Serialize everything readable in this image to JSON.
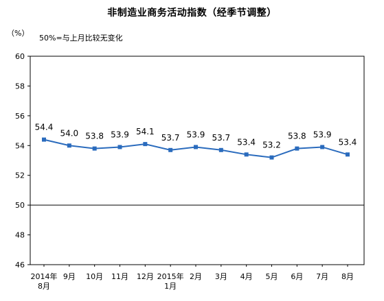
{
  "title": "非制造业商务活动指数（经季节调整）",
  "y_unit": "（%）",
  "note": "50%=与上月比较无变化",
  "colors": {
    "line": "#2a6bbd",
    "axis": "#000000"
  },
  "chart_data": {
    "type": "line",
    "title": "非制造业商务活动指数（经季节调整）",
    "xlabel": "",
    "ylabel": "（%）",
    "categories": [
      [
        "2014年",
        "8月"
      ],
      [
        "9月"
      ],
      [
        "10月"
      ],
      [
        "11月"
      ],
      [
        "12月"
      ],
      [
        "2015年",
        "1月"
      ],
      [
        "2月"
      ],
      [
        "3月"
      ],
      [
        "4月"
      ],
      [
        "5月"
      ],
      [
        "6月"
      ],
      [
        "7月"
      ],
      [
        "8月"
      ]
    ],
    "series": [
      {
        "values": [
          54.4,
          54.0,
          53.8,
          53.9,
          54.1,
          53.7,
          53.9,
          53.7,
          53.4,
          53.2,
          53.8,
          53.9,
          53.4
        ]
      }
    ],
    "data_labels": [
      "54.4",
      "54.0",
      "53.8",
      "53.9",
      "54.1",
      "53.7",
      "53.9",
      "53.7",
      "53.4",
      "53.2",
      "53.8",
      "53.9",
      "53.4"
    ],
    "ylim": [
      46,
      60
    ],
    "yticks": [
      46,
      48,
      50,
      52,
      54,
      56,
      58,
      60
    ],
    "reference_line": 50,
    "grid": false,
    "legend": "none"
  }
}
